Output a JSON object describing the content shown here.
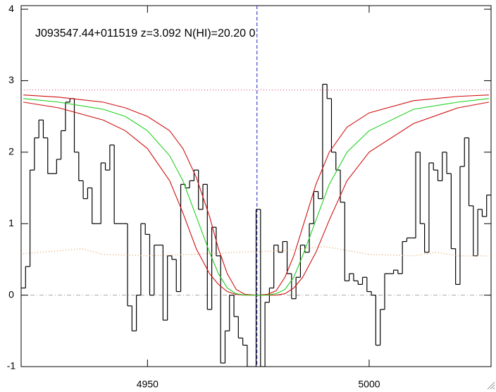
{
  "chart_data": {
    "type": "line",
    "title": "J093547.44+011519 z=3.092 N(HI)=20.20 0",
    "xlim": [
      4921.5,
      5027.5
    ],
    "ylim": [
      -1,
      4.05
    ],
    "xticks": [
      4950,
      5000
    ],
    "yticks": [
      -1,
      0,
      1,
      2,
      3,
      4
    ],
    "series": [
      {
        "color": "#000000",
        "style": "step",
        "x": [
          4922,
          4923,
          4924,
          4925,
          4926,
          4927,
          4928,
          4929,
          4930,
          4931,
          4932,
          4933,
          4934,
          4935,
          4936,
          4937,
          4938,
          4939,
          4940,
          4941,
          4942,
          4943,
          4944,
          4945,
          4946,
          4947,
          4948,
          4949,
          4950,
          4951,
          4952,
          4953,
          4954,
          4955,
          4956,
          4957,
          4958,
          4959,
          4960,
          4961,
          4962,
          4963,
          4964,
          4965,
          4966,
          4967,
          4968,
          4969,
          4970,
          4971,
          4972,
          4973,
          4974,
          4975,
          4976,
          4977,
          4978,
          4979,
          4980,
          4981,
          4982,
          4983,
          4984,
          4985,
          4986,
          4987,
          4988,
          4989,
          4990,
          4991,
          4992,
          4993,
          4994,
          4995,
          4996,
          4997,
          4998,
          4999,
          5000,
          5001,
          5002,
          5003,
          5004,
          5005,
          5006,
          5007,
          5008,
          5009,
          5010,
          5011,
          5012,
          5013,
          5014,
          5015,
          5016,
          5017,
          5018,
          5019,
          5020,
          5021,
          5022,
          5023,
          5024,
          5025,
          5026,
          5027
        ],
        "values": [
          0.1,
          0.4,
          1.75,
          2.2,
          2.45,
          2.2,
          1.7,
          1.7,
          1.9,
          2.3,
          2.7,
          2.75,
          2.0,
          1.6,
          1.35,
          1.5,
          1.0,
          1.0,
          1.85,
          1.75,
          2.1,
          1.0,
          1.0,
          1.0,
          -0.15,
          -0.5,
          0.0,
          1.0,
          0.85,
          0.0,
          0.7,
          0.7,
          -0.35,
          0.55,
          0.5,
          0.05,
          1.55,
          1.5,
          1.6,
          1.75,
          1.2,
          1.55,
          -0.2,
          0.95,
          0.55,
          -0.95,
          -0.5,
          0.0,
          -0.3,
          -0.6,
          -0.7,
          -1.0,
          -1.0,
          1.2,
          -1.0,
          -0.1,
          0.1,
          0.7,
          0.6,
          0.75,
          0.3,
          -0.05,
          0.25,
          0.7,
          0.6,
          1.0,
          1.45,
          1.35,
          2.95,
          2.75,
          2.0,
          1.75,
          1.3,
          0.2,
          0.3,
          0.2,
          0.15,
          0.25,
          0.05,
          0.0,
          -0.7,
          -0.2,
          0.3,
          0.3,
          0.35,
          0.3,
          0.75,
          0.8,
          0.8,
          2.0,
          1.0,
          0.6,
          1.85,
          1.75,
          1.6,
          2.0,
          1.7,
          0.65,
          0.15,
          1.8,
          2.2,
          1.25,
          0.55,
          1.2,
          1.1,
          1.4
        ]
      },
      {
        "color": "#e8a060",
        "style": "dotted",
        "x": [
          4922,
          4930,
          4935,
          4940,
          4950,
          4960,
          4970,
          4980,
          4990,
          5000,
          5010,
          5015,
          5020,
          5027
        ],
        "values": [
          0.58,
          0.62,
          0.65,
          0.57,
          0.55,
          0.57,
          0.6,
          0.62,
          0.68,
          0.57,
          0.55,
          0.6,
          0.55,
          0.55
        ]
      },
      {
        "color": "#d01010",
        "style": "line",
        "x": [
          4922,
          4930,
          4940,
          4945,
          4950,
          4955,
          4958,
          4961,
          4964,
          4966,
          4968,
          4970,
          4972,
          4974.7,
          4977,
          4979,
          4981,
          4983,
          4985,
          4988,
          4991,
          4995,
          5000,
          5010,
          5020,
          5027
        ],
        "values": [
          2.8,
          2.77,
          2.7,
          2.62,
          2.5,
          2.3,
          2.05,
          1.65,
          1.1,
          0.65,
          0.3,
          0.08,
          0.01,
          0,
          0.01,
          0.06,
          0.25,
          0.55,
          0.95,
          1.55,
          2.0,
          2.35,
          2.55,
          2.72,
          2.78,
          2.8
        ]
      },
      {
        "color": "#d01010",
        "style": "line",
        "x": [
          4922,
          4930,
          4940,
          4945,
          4950,
          4955,
          4958,
          4961,
          4964,
          4966,
          4968,
          4970,
          4972,
          4974.7,
          4977,
          4979,
          4981,
          4983,
          4985,
          4988,
          4991,
          4995,
          5000,
          5010,
          5020,
          5027
        ],
        "values": [
          2.7,
          2.62,
          2.45,
          2.3,
          2.05,
          1.6,
          1.15,
          0.65,
          0.3,
          0.15,
          0.05,
          0.01,
          0,
          0,
          0,
          0,
          0.02,
          0.1,
          0.25,
          0.6,
          1.05,
          1.6,
          2.0,
          2.4,
          2.62,
          2.7
        ]
      },
      {
        "color": "#20d020",
        "style": "line",
        "x": [
          4922,
          4930,
          4940,
          4945,
          4950,
          4955,
          4958,
          4961,
          4964,
          4966,
          4968,
          4970,
          4972,
          4974.7,
          4977,
          4979,
          4981,
          4983,
          4985,
          4988,
          4991,
          4995,
          5000,
          5010,
          5020,
          5027
        ],
        "values": [
          2.75,
          2.7,
          2.6,
          2.5,
          2.3,
          1.95,
          1.6,
          1.1,
          0.6,
          0.3,
          0.1,
          0.02,
          0,
          0,
          0,
          0.02,
          0.08,
          0.25,
          0.55,
          1.05,
          1.55,
          2.0,
          2.3,
          2.6,
          2.7,
          2.75
        ]
      }
    ],
    "hlines": [
      {
        "value": 2.87,
        "color": "#e0306a",
        "style": "dotted"
      },
      {
        "value": 0,
        "color": "#aaaaaa",
        "style": "dashdot"
      }
    ],
    "vlines": [
      {
        "value": 4974.7,
        "color": "#2020c0",
        "style": "dashed"
      }
    ]
  }
}
